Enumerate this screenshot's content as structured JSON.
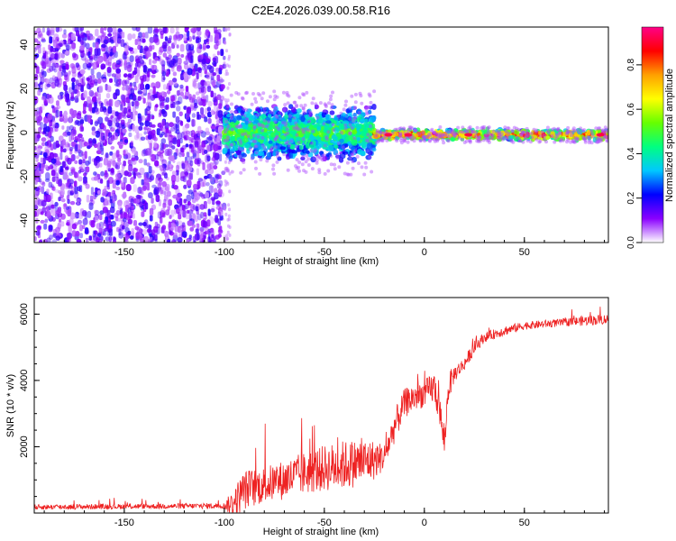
{
  "figure_title": "C2E4.2026.039.00.58.R16",
  "colors": {
    "snr_line": "#ee2222",
    "axis": "#000000"
  },
  "chart_data": [
    {
      "type": "heatmap",
      "title": "C2E4.2026.039.00.58.R16",
      "xlabel": "Height of straight line (km)",
      "ylabel": "Frequency (Hz)",
      "xlim": [
        -195,
        92
      ],
      "ylim": [
        -50,
        48
      ],
      "xticks": [
        -150,
        -100,
        -50,
        0,
        50
      ],
      "yticks": [
        -40,
        -20,
        0,
        20,
        40
      ],
      "colorbar": {
        "label": "Normalized spectral amplitude",
        "range": [
          0,
          0.97
        ],
        "ticks": [
          0.0,
          0.2,
          0.4,
          0.6,
          0.8
        ],
        "tick_labels": [
          "0.0",
          "0.2",
          "0.4",
          "0.6",
          "0.8"
        ],
        "colormap": [
          "#ffffff",
          "#8a00ff",
          "#0000ff",
          "#00c8ff",
          "#00ff80",
          "#66ff00",
          "#ffff00",
          "#ffa000",
          "#ff0000",
          "#ff0088"
        ]
      },
      "regions": [
        {
          "name": "noise",
          "x_range": [
            -195,
            -100
          ],
          "freq_range": [
            -50,
            48
          ],
          "amplitude": 0.1
        },
        {
          "name": "turbulent signal",
          "x_range": [
            -100,
            -25
          ],
          "freq_center": 0,
          "freq_halfwidth": 8,
          "amplitude": 0.35
        },
        {
          "name": "stable line",
          "x_range": [
            -25,
            92
          ],
          "freq_center": -1,
          "freq_halfwidth": 1.5,
          "amplitude": 0.6
        }
      ]
    },
    {
      "type": "line",
      "xlabel": "Height of straight line (km)",
      "ylabel": "SNR (10 * v/v)",
      "xlim": [
        -195,
        92
      ],
      "ylim": [
        0,
        6500
      ],
      "xticks": [
        -150,
        -100,
        -50,
        0,
        50
      ],
      "yticks": [
        2000,
        4000,
        6000
      ],
      "series": [
        {
          "name": "SNR",
          "x": [
            -195,
            -150,
            -120,
            -100,
            -95,
            -90,
            -80,
            -70,
            -60,
            -50,
            -40,
            -30,
            -25,
            -20,
            -15,
            -10,
            -5,
            0,
            5,
            8,
            10,
            12,
            15,
            20,
            25,
            30,
            40,
            50,
            60,
            70,
            80,
            92
          ],
          "y": [
            180,
            200,
            210,
            220,
            300,
            700,
            850,
            1000,
            1200,
            1350,
            1450,
            1550,
            1600,
            1700,
            2600,
            3300,
            3500,
            3600,
            3800,
            3000,
            2000,
            3800,
            4200,
            4500,
            5000,
            5300,
            5500,
            5650,
            5700,
            5750,
            5800,
            5850
          ],
          "noise": [
            80,
            80,
            80,
            90,
            500,
            600,
            550,
            600,
            650,
            700,
            750,
            700,
            600,
            400,
            500,
            450,
            450,
            400,
            500,
            450,
            300,
            450,
            250,
            200,
            200,
            150,
            150,
            120,
            120,
            120,
            150,
            150
          ]
        }
      ]
    }
  ]
}
